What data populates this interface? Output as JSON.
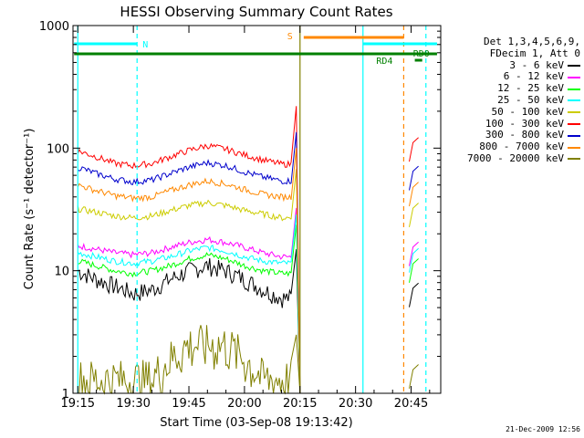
{
  "chart_data": {
    "type": "line",
    "title": "HESSI Observing Summary Count Rates",
    "xlabel": "Start Time (03-Sep-08 19:13:42)",
    "ylabel": "Count Rate (s⁻¹ detector⁻¹)",
    "ylog": true,
    "xlim": [
      "19:13:42",
      "20:53:00"
    ],
    "ylim": [
      1,
      1000
    ],
    "xticks": [
      "19:15",
      "19:30",
      "19:45",
      "20:00",
      "20:15",
      "20:30",
      "20:45"
    ],
    "yticks": [
      "1",
      "10",
      "100",
      "1000"
    ],
    "legend": {
      "position": "right",
      "header": [
        "Det 1,3,4,5,6,9,",
        "FDecim 1, Att 0"
      ],
      "entries": [
        {
          "label": "3 - 6 keV",
          "color": "#000000"
        },
        {
          "label": "6 - 12 keV",
          "color": "#ff00ff"
        },
        {
          "label": "12 - 25 keV",
          "color": "#00ff00"
        },
        {
          "label": "25 - 50 keV",
          "color": "#00ffff"
        },
        {
          "label": "50 - 100 keV",
          "color": "#cccc00"
        },
        {
          "label": "100 - 300 keV",
          "color": "#ff0000"
        },
        {
          "label": "300 - 800 keV",
          "color": "#0000cc"
        },
        {
          "label": "800 - 7000 keV",
          "color": "#ff8800"
        },
        {
          "label": "7000 - 20000 keV",
          "color": "#808000"
        }
      ]
    },
    "series": [
      {
        "name": "3 - 6 keV",
        "color": "#000000",
        "x": [
          "19:15",
          "19:20",
          "19:25",
          "19:30",
          "19:35",
          "19:40",
          "19:45",
          "19:50",
          "19:55",
          "20:00",
          "20:05",
          "20:10",
          "20:13"
        ],
        "y": [
          10,
          8.5,
          7.5,
          6.5,
          7,
          8.5,
          10,
          11,
          10,
          8.5,
          7,
          6,
          6
        ]
      },
      {
        "name": "6 - 12 keV",
        "color": "#ff00ff",
        "x": [
          "19:15",
          "19:20",
          "19:25",
          "19:30",
          "19:35",
          "19:40",
          "19:45",
          "19:50",
          "19:55",
          "20:00",
          "20:05",
          "20:10",
          "20:13"
        ],
        "y": [
          16,
          15,
          14,
          13.5,
          14,
          15.5,
          17,
          18,
          17,
          15.5,
          14,
          13,
          13
        ]
      },
      {
        "name": "12 - 25 keV",
        "color": "#00ff00",
        "x": [
          "19:15",
          "19:20",
          "19:25",
          "19:30",
          "19:35",
          "19:40",
          "19:45",
          "19:50",
          "19:55",
          "20:00",
          "20:05",
          "20:10",
          "20:13"
        ],
        "y": [
          12,
          11,
          10,
          9.5,
          10,
          11,
          12.5,
          13.5,
          12.5,
          11,
          10,
          9.5,
          9.5
        ]
      },
      {
        "name": "25 - 50 keV",
        "color": "#00ffff",
        "x": [
          "19:15",
          "19:20",
          "19:25",
          "19:30",
          "19:35",
          "19:40",
          "19:45",
          "19:50",
          "19:55",
          "20:00",
          "20:05",
          "20:10",
          "20:13"
        ],
        "y": [
          14,
          13,
          12,
          11.5,
          12,
          13,
          14.5,
          15.5,
          14.5,
          13,
          12,
          11.5,
          11.5
        ]
      },
      {
        "name": "50 - 100 keV",
        "color": "#cccc00",
        "x": [
          "19:15",
          "19:20",
          "19:25",
          "19:30",
          "19:35",
          "19:40",
          "19:45",
          "19:50",
          "19:55",
          "20:00",
          "20:05",
          "20:10",
          "20:13"
        ],
        "y": [
          32,
          30,
          28,
          27,
          28,
          31,
          34,
          36,
          34,
          31,
          29,
          27,
          27
        ]
      },
      {
        "name": "100 - 300 keV",
        "color": "#ff0000",
        "x": [
          "19:15",
          "19:20",
          "19:25",
          "19:30",
          "19:35",
          "19:40",
          "19:45",
          "19:50",
          "19:55",
          "20:00",
          "20:05",
          "20:10",
          "20:13"
        ],
        "y": [
          95,
          85,
          75,
          72,
          75,
          85,
          96,
          105,
          98,
          88,
          80,
          74,
          74
        ]
      },
      {
        "name": "300 - 800 keV",
        "color": "#0000cc",
        "x": [
          "19:15",
          "19:20",
          "19:25",
          "19:30",
          "19:35",
          "19:40",
          "19:45",
          "19:50",
          "19:55",
          "20:00",
          "20:05",
          "20:10",
          "20:13"
        ],
        "y": [
          70,
          62,
          56,
          53,
          55,
          62,
          70,
          76,
          72,
          64,
          58,
          54,
          54
        ]
      },
      {
        "name": "800 - 7000 keV",
        "color": "#ff8800",
        "x": [
          "19:15",
          "19:20",
          "19:25",
          "19:30",
          "19:35",
          "19:40",
          "19:45",
          "19:50",
          "19:55",
          "20:00",
          "20:05",
          "20:10",
          "20:13"
        ],
        "y": [
          50,
          45,
          41,
          39,
          40,
          45,
          50,
          54,
          51,
          46,
          42,
          40,
          40
        ]
      },
      {
        "name": "7000 - 20000 keV",
        "color": "#808000",
        "x": [
          "19:15",
          "19:25",
          "19:35",
          "19:45",
          "19:55",
          "20:05",
          "20:13"
        ],
        "y": [
          1.3,
          1.3,
          1.3,
          2.5,
          2.5,
          1.3,
          1.3
        ]
      }
    ],
    "annotations": [
      {
        "text": "N",
        "color": "#00ffff"
      },
      {
        "text": "S",
        "color": "#ff8800"
      },
      {
        "text": "RD4",
        "color": "#008000"
      },
      {
        "text": "RD0",
        "color": "#008000"
      }
    ],
    "vlines": [
      {
        "x": "19:15",
        "color": "#00ffff",
        "style": "solid"
      },
      {
        "x": "19:31",
        "color": "#00ffff",
        "style": "dashed"
      },
      {
        "x": "20:15",
        "color": "#808000",
        "style": "solid"
      },
      {
        "x": "20:32",
        "color": "#00ffff",
        "style": "solid"
      },
      {
        "x": "20:43",
        "color": "#ff8800",
        "style": "dashed"
      },
      {
        "x": "20:49",
        "color": "#00ffff",
        "style": "dashed"
      }
    ]
  },
  "footer": {
    "date": "21-Dec-2009 12:56"
  }
}
